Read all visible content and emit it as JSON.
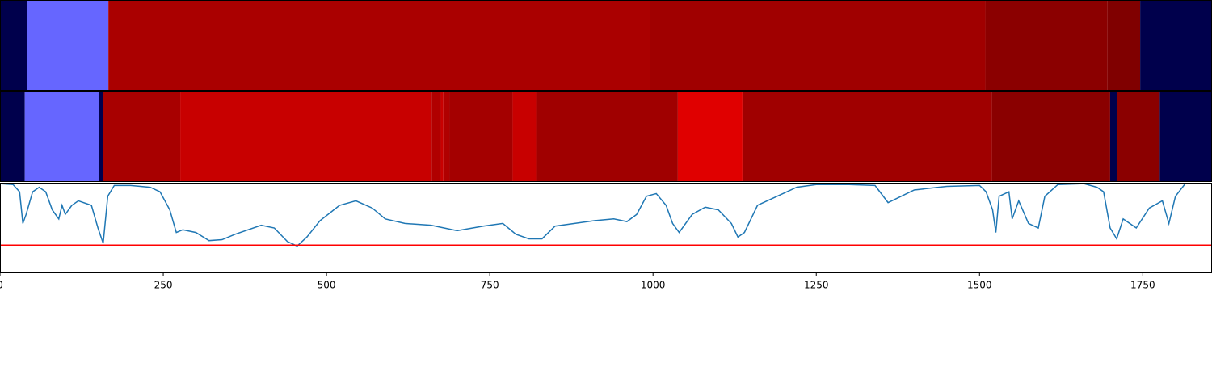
{
  "chart_data": {
    "type": "band-line",
    "xlim": [
      0,
      1856
    ],
    "xticks": [
      0,
      250,
      500,
      750,
      1000,
      1250,
      1500,
      1750
    ],
    "bands": [
      {
        "edges": [
          0,
          41,
          166,
          995,
          1509,
          1696,
          1746,
          1856
        ],
        "colors": [
          "#00004c",
          "#6666ff",
          "#aa0000",
          "#a00000",
          "#8b0000",
          "#800000",
          "#00004c"
        ]
      },
      {
        "edges": [
          0,
          38,
          152,
          158,
          276,
          661,
          675,
          679,
          688,
          785,
          821,
          1038,
          1137,
          1519,
          1700,
          1710,
          1776,
          1856
        ],
        "colors": [
          "#00004c",
          "#6666ff",
          "#00004c",
          "#a80000",
          "#c80000",
          "#b00000",
          "#c80000",
          "#b00000",
          "#a40000",
          "#c80000",
          "#a00000",
          "#e00000",
          "#a00000",
          "#8a0000",
          "#00004c",
          "#8b0000",
          "#00004c"
        ]
      }
    ],
    "line": {
      "color": "#1f77b4",
      "x": [
        0,
        20,
        30,
        35,
        40,
        50,
        60,
        70,
        80,
        90,
        95,
        100,
        110,
        120,
        140,
        150,
        158,
        165,
        175,
        200,
        230,
        245,
        260,
        270,
        280,
        300,
        320,
        340,
        360,
        400,
        420,
        440,
        455,
        470,
        490,
        520,
        545,
        570,
        590,
        620,
        660,
        700,
        740,
        770,
        790,
        810,
        830,
        850,
        880,
        910,
        940,
        960,
        975,
        990,
        1005,
        1020,
        1030,
        1040,
        1060,
        1080,
        1100,
        1120,
        1130,
        1140,
        1160,
        1190,
        1220,
        1250,
        1300,
        1340,
        1360,
        1380,
        1400,
        1450,
        1500,
        1510,
        1520,
        1525,
        1530,
        1545,
        1550,
        1560,
        1575,
        1590,
        1600,
        1620,
        1660,
        1680,
        1690,
        1700,
        1710,
        1720,
        1740,
        1760,
        1780,
        1790,
        1800,
        1815,
        1830
      ],
      "y": [
        0.99,
        0.98,
        0.9,
        0.55,
        0.65,
        0.9,
        0.95,
        0.9,
        0.7,
        0.6,
        0.75,
        0.65,
        0.75,
        0.8,
        0.75,
        0.5,
        0.33,
        0.85,
        0.97,
        0.97,
        0.95,
        0.9,
        0.7,
        0.45,
        0.48,
        0.45,
        0.36,
        0.37,
        0.43,
        0.53,
        0.5,
        0.35,
        0.3,
        0.4,
        0.58,
        0.75,
        0.8,
        0.72,
        0.6,
        0.55,
        0.53,
        0.47,
        0.52,
        0.55,
        0.43,
        0.38,
        0.38,
        0.52,
        0.55,
        0.58,
        0.6,
        0.57,
        0.65,
        0.85,
        0.88,
        0.75,
        0.55,
        0.45,
        0.65,
        0.73,
        0.7,
        0.55,
        0.4,
        0.45,
        0.75,
        0.85,
        0.95,
        0.98,
        0.98,
        0.97,
        0.78,
        0.85,
        0.92,
        0.96,
        0.97,
        0.9,
        0.7,
        0.45,
        0.85,
        0.9,
        0.6,
        0.8,
        0.55,
        0.5,
        0.85,
        0.98,
        0.99,
        0.95,
        0.9,
        0.5,
        0.38,
        0.6,
        0.5,
        0.72,
        0.8,
        0.55,
        0.85,
        0.99,
        0.99
      ]
    },
    "ylim": [
      0,
      1
    ],
    "hline": {
      "y": 0.31,
      "color": "#ff0000"
    }
  }
}
